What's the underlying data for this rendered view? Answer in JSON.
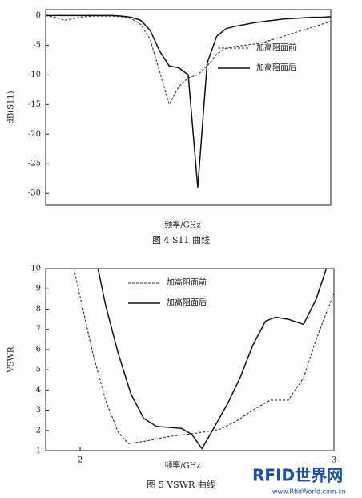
{
  "chart_data": [
    {
      "type": "line",
      "ylabel": "dB(S11)",
      "xlabel": "频率/GHz",
      "caption": "图 4 S11 曲线",
      "ylim": [
        -32,
        1
      ],
      "yticks": [
        0,
        -5,
        -10,
        -15,
        -20,
        -25,
        -30
      ],
      "series": [
        {
          "name": "加高阻面前",
          "color": "#333333",
          "dashed": true,
          "values": [
            0,
            -0.3,
            -0.8,
            -0.5,
            -0.2,
            -0.1,
            -0.1,
            -0.1,
            -0.2,
            -0.5,
            -1.5,
            -4,
            -9.5,
            -15,
            -12,
            -10.5,
            -10,
            -8.5,
            -6.5,
            -5.5,
            -5.2,
            -5,
            -4.8,
            -4.5,
            -4,
            -3.5,
            -3,
            -2.5,
            -2,
            -1.5,
            -1
          ]
        },
        {
          "name": "加高阻面后",
          "color": "#111111",
          "dashed": false,
          "values": [
            0,
            0,
            0,
            0,
            0,
            0,
            0,
            0,
            -0.1,
            -0.3,
            -0.8,
            -2.5,
            -6,
            -8.5,
            -8.8,
            -10,
            -29,
            -8,
            -3.5,
            -2.2,
            -1.8,
            -1.5,
            -1.2,
            -1,
            -0.8,
            -0.6,
            -0.5,
            -0.4,
            -0.3,
            -0.3,
            -0.2
          ]
        }
      ]
    },
    {
      "type": "line",
      "ylabel": "VSWR",
      "xlabel": "频率/GHz",
      "caption": "图 5 VSWR 曲线",
      "xlim": [
        1.864,
        3
      ],
      "xticks": [
        2,
        3
      ],
      "ylim": [
        1,
        10
      ],
      "yticks": [
        1,
        2,
        3,
        4,
        5,
        6,
        7,
        8,
        9,
        10
      ],
      "series": [
        {
          "name": "加高阻面前",
          "color": "#333333",
          "dashed": true,
          "x": [
            1.975,
            2.0,
            2.05,
            2.1,
            2.15,
            2.19,
            2.25,
            2.35,
            2.45,
            2.55,
            2.62,
            2.68,
            2.75,
            2.82,
            2.88,
            2.93,
            3.0
          ],
          "values": [
            10,
            8.6,
            5.8,
            3.5,
            1.9,
            1.35,
            1.45,
            1.7,
            1.85,
            2.05,
            2.5,
            3.0,
            3.5,
            3.5,
            4.6,
            6.5,
            8.8
          ]
        },
        {
          "name": "加高阻面后",
          "color": "#111111",
          "dashed": false,
          "x": [
            2.07,
            2.1,
            2.15,
            2.2,
            2.25,
            2.3,
            2.35,
            2.4,
            2.44,
            2.48,
            2.53,
            2.58,
            2.63,
            2.68,
            2.73,
            2.77,
            2.82,
            2.88,
            2.93,
            2.97
          ],
          "values": [
            10,
            8.2,
            5.8,
            3.8,
            2.6,
            2.2,
            2.15,
            2.1,
            1.8,
            1.1,
            2.2,
            3.3,
            4.6,
            6.2,
            7.4,
            7.6,
            7.5,
            7.25,
            8.5,
            10
          ]
        }
      ]
    }
  ],
  "watermark": {
    "brand": "RFID世界网",
    "url": "www.RfidWorld.com.cn"
  }
}
